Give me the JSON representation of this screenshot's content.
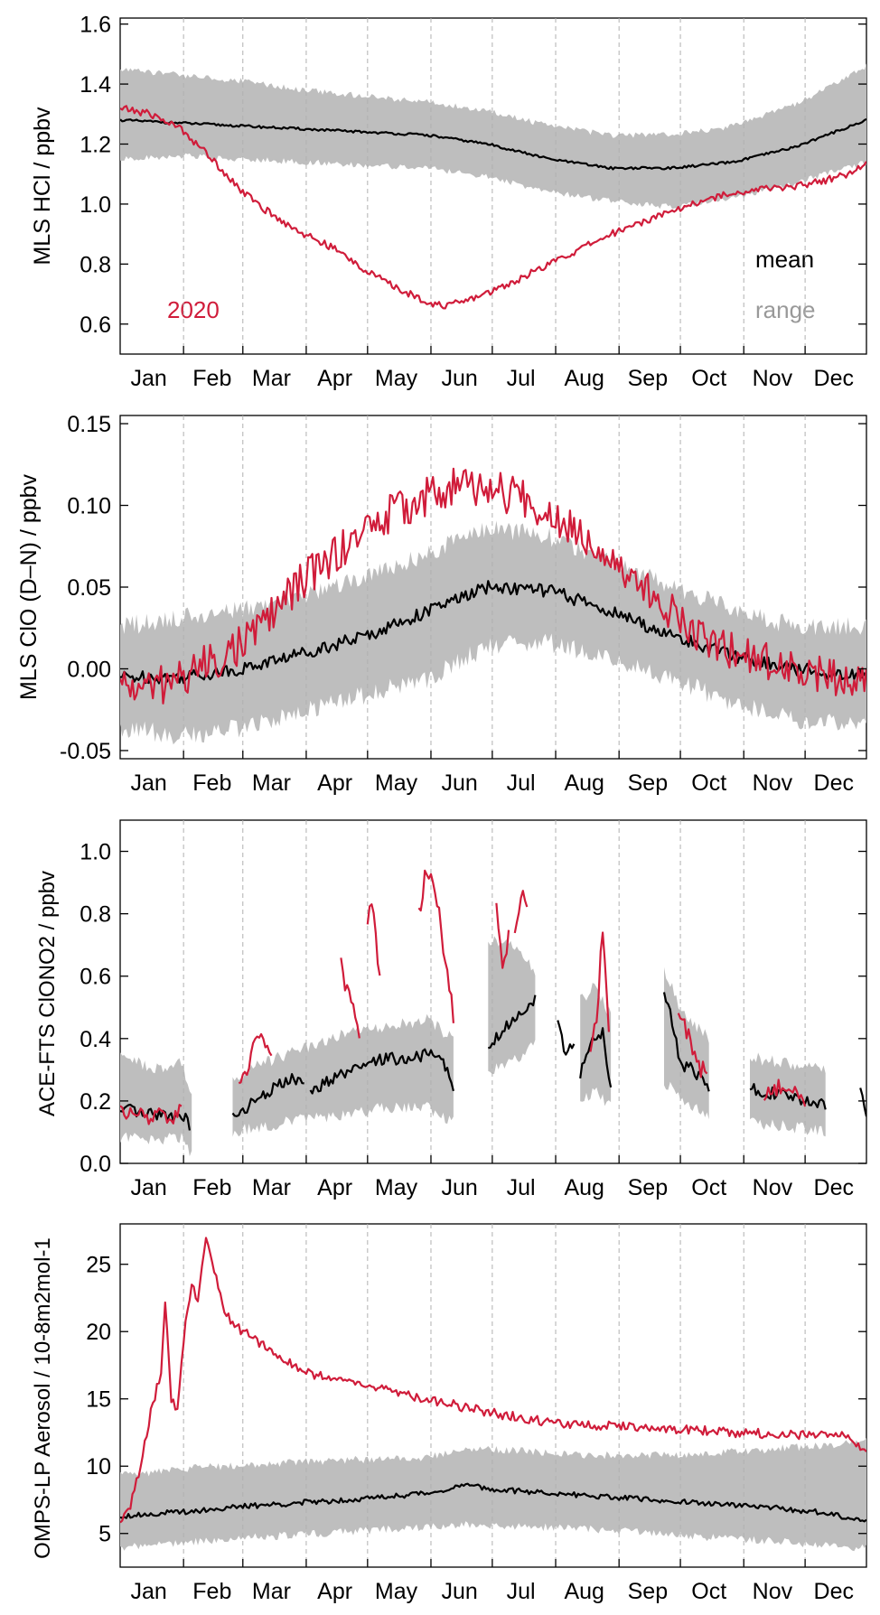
{
  "figure": {
    "months": [
      "Jan",
      "Feb",
      "Mar",
      "Apr",
      "May",
      "Jun",
      "Jul",
      "Aug",
      "Sep",
      "Oct",
      "Nov",
      "Dec"
    ]
  },
  "colors": {
    "series_2020": "#d01c3a",
    "mean": "#000000",
    "range_fill": "#bebebe",
    "range_label": "#999999",
    "grid": "#b0b0b0"
  },
  "legend": {
    "year_label": "2020",
    "mean_label": "mean",
    "range_label": "range"
  },
  "chart_data": [
    {
      "id": "hcl",
      "type": "line",
      "ylabel": "MLS HCl / ppbv",
      "ylim": [
        0.5,
        1.62
      ],
      "yticks": [
        0.6,
        0.8,
        1.0,
        1.2,
        1.4,
        1.6
      ],
      "ytick_labels": [
        "0.6",
        "0.8",
        "1.0",
        "1.2",
        "1.4",
        "1.6"
      ],
      "x_unit": "day of year",
      "xlim": [
        0,
        365
      ],
      "series": [
        {
          "name": "2020",
          "x": [
            0,
            15,
            30,
            45,
            60,
            75,
            90,
            105,
            120,
            135,
            152,
            160,
            170,
            182,
            195,
            210,
            225,
            240,
            255,
            270,
            285,
            300,
            315,
            330,
            345,
            360,
            365
          ],
          "y": [
            1.32,
            1.3,
            1.25,
            1.15,
            1.04,
            0.96,
            0.9,
            0.85,
            0.78,
            0.72,
            0.67,
            0.66,
            0.68,
            0.71,
            0.75,
            0.8,
            0.85,
            0.9,
            0.94,
            0.98,
            1.01,
            1.04,
            1.05,
            1.06,
            1.08,
            1.11,
            1.14
          ]
        },
        {
          "name": "mean",
          "x": [
            0,
            30,
            60,
            90,
            120,
            150,
            180,
            210,
            240,
            270,
            300,
            330,
            365
          ],
          "y": [
            1.28,
            1.27,
            1.26,
            1.25,
            1.24,
            1.23,
            1.2,
            1.15,
            1.12,
            1.12,
            1.14,
            1.19,
            1.28
          ]
        },
        {
          "name": "range",
          "x": [
            0,
            30,
            60,
            90,
            120,
            150,
            180,
            210,
            240,
            270,
            300,
            330,
            365
          ],
          "lower": [
            1.16,
            1.17,
            1.16,
            1.15,
            1.14,
            1.13,
            1.1,
            1.05,
            1.02,
            1.0,
            1.03,
            1.08,
            1.15
          ],
          "upper": [
            1.44,
            1.42,
            1.4,
            1.37,
            1.35,
            1.33,
            1.3,
            1.25,
            1.22,
            1.22,
            1.25,
            1.32,
            1.45
          ]
        }
      ]
    },
    {
      "id": "clo",
      "type": "line",
      "ylabel": "MLS ClO (D–N) / ppbv",
      "ylim": [
        -0.055,
        0.155
      ],
      "yticks": [
        -0.05,
        0.0,
        0.05,
        0.1,
        0.15
      ],
      "ytick_labels": [
        "-0.05",
        "0.00",
        "0.05",
        "0.10",
        "0.15"
      ],
      "x_unit": "day of year",
      "xlim": [
        0,
        365
      ],
      "series": [
        {
          "name": "2020",
          "x": [
            0,
            15,
            30,
            45,
            60,
            75,
            90,
            105,
            120,
            135,
            150,
            165,
            180,
            195,
            210,
            225,
            240,
            255,
            270,
            285,
            300,
            315,
            330,
            345,
            365
          ],
          "y": [
            -0.01,
            -0.012,
            -0.005,
            0.005,
            0.015,
            0.035,
            0.055,
            0.07,
            0.085,
            0.097,
            0.105,
            0.112,
            0.11,
            0.105,
            0.095,
            0.085,
            0.07,
            0.05,
            0.035,
            0.02,
            0.01,
            0.005,
            0.0,
            -0.005,
            -0.01
          ]
        },
        {
          "name": "mean",
          "x": [
            0,
            30,
            60,
            90,
            120,
            150,
            180,
            210,
            240,
            270,
            300,
            330,
            365
          ],
          "y": [
            -0.005,
            -0.005,
            0.0,
            0.01,
            0.02,
            0.035,
            0.05,
            0.048,
            0.035,
            0.02,
            0.008,
            0.0,
            -0.005
          ]
        },
        {
          "name": "range",
          "x": [
            0,
            30,
            60,
            90,
            120,
            150,
            180,
            210,
            240,
            270,
            300,
            330,
            365
          ],
          "lower": [
            -0.03,
            -0.035,
            -0.03,
            -0.02,
            -0.01,
            0.0,
            0.02,
            0.022,
            0.012,
            0.0,
            -0.015,
            -0.025,
            -0.03
          ],
          "upper": [
            0.02,
            0.025,
            0.03,
            0.04,
            0.05,
            0.065,
            0.08,
            0.075,
            0.06,
            0.045,
            0.03,
            0.02,
            0.02
          ]
        }
      ]
    },
    {
      "id": "clono2",
      "type": "line",
      "ylabel": "ACE-FTS ClONO2 / ppbv",
      "ylim": [
        0.0,
        1.1
      ],
      "yticks": [
        0.0,
        0.2,
        0.4,
        0.6,
        0.8,
        1.0
      ],
      "ytick_labels": [
        "0.0",
        "0.2",
        "0.4",
        "0.6",
        "0.8",
        "1.0"
      ],
      "x_unit": "day of year",
      "xlim": [
        0,
        365
      ],
      "series": [
        {
          "name": "2020",
          "segments": [
            {
              "x": [
                0,
                5,
                10,
                15,
                20,
                25,
                30
              ],
              "y": [
                0.18,
                0.15,
                0.16,
                0.14,
                0.17,
                0.15,
                0.16
              ]
            },
            {
              "x": [
                58,
                62,
                66,
                70,
                74
              ],
              "y": [
                0.25,
                0.3,
                0.38,
                0.42,
                0.33
              ]
            },
            {
              "x": [
                108,
                111,
                114,
                117
              ],
              "y": [
                0.65,
                0.55,
                0.5,
                0.38
              ]
            },
            {
              "x": [
                121,
                123,
                125,
                127
              ],
              "y": [
                0.78,
                0.83,
                0.72,
                0.6
              ]
            },
            {
              "x": [
                146,
                150,
                154,
                158,
                163
              ],
              "y": [
                0.8,
                0.95,
                0.88,
                0.7,
                0.47
              ]
            },
            {
              "x": [
                184,
                187,
                190
              ],
              "y": [
                0.85,
                0.62,
                0.72
              ]
            },
            {
              "x": [
                193,
                196,
                199
              ],
              "y": [
                0.72,
                0.87,
                0.8
              ]
            },
            {
              "x": [
                230,
                233,
                236,
                239
              ],
              "y": [
                0.35,
                0.45,
                0.75,
                0.42
              ]
            },
            {
              "x": [
                273,
                276,
                279,
                283,
                287
              ],
              "y": [
                0.5,
                0.45,
                0.38,
                0.3,
                0.3
              ]
            },
            {
              "x": [
                315,
                320,
                325,
                330,
                335
              ],
              "y": [
                0.2,
                0.25,
                0.22,
                0.24,
                0.2
              ]
            }
          ]
        },
        {
          "name": "mean",
          "segments": [
            {
              "x": [
                0,
                6,
                12,
                18,
                24,
                30,
                34
              ],
              "y": [
                0.16,
                0.17,
                0.15,
                0.16,
                0.15,
                0.16,
                0.12
              ]
            },
            {
              "x": [
                55,
                62,
                70,
                78,
                84,
                90
              ],
              "y": [
                0.15,
                0.18,
                0.22,
                0.25,
                0.27,
                0.25
              ]
            },
            {
              "x": [
                93,
                100,
                108,
                116,
                124,
                130,
                140,
                150,
                158,
                163
              ],
              "y": [
                0.22,
                0.26,
                0.28,
                0.3,
                0.32,
                0.34,
                0.33,
                0.35,
                0.33,
                0.24
              ]
            },
            {
              "x": [
                180,
                186,
                192,
                198,
                203
              ],
              "y": [
                0.38,
                0.42,
                0.46,
                0.5,
                0.52
              ]
            },
            {
              "x": [
                214,
                218,
                222
              ],
              "y": [
                0.45,
                0.35,
                0.38
              ]
            },
            {
              "x": [
                225,
                230,
                236,
                240
              ],
              "y": [
                0.28,
                0.4,
                0.42,
                0.25
              ]
            },
            {
              "x": [
                266,
                270,
                274,
                280,
                285,
                288
              ],
              "y": [
                0.55,
                0.45,
                0.32,
                0.3,
                0.27,
                0.24
              ]
            },
            {
              "x": [
                308,
                315,
                322,
                330,
                338,
                345
              ],
              "y": [
                0.24,
                0.23,
                0.22,
                0.21,
                0.2,
                0.18
              ]
            },
            {
              "x": [
                362,
                364,
                365
              ],
              "y": [
                0.25,
                0.18,
                0.16
              ]
            }
          ]
        },
        {
          "name": "range",
          "segments": [
            {
              "x": [
                0,
                10,
                20,
                30,
                35
              ],
              "lower": [
                0.1,
                0.1,
                0.1,
                0.1,
                0.05
              ],
              "upper": [
                0.32,
                0.3,
                0.28,
                0.3,
                0.2
              ]
            },
            {
              "x": [
                55,
                70,
                90,
                110,
                130,
                150,
                163
              ],
              "lower": [
                0.12,
                0.14,
                0.16,
                0.18,
                0.2,
                0.2,
                0.15
              ],
              "upper": [
                0.25,
                0.3,
                0.35,
                0.4,
                0.42,
                0.44,
                0.38
              ]
            },
            {
              "x": [
                180,
                192,
                203
              ],
              "lower": [
                0.32,
                0.35,
                0.4
              ],
              "upper": [
                0.7,
                0.68,
                0.6
              ]
            },
            {
              "x": [
                225,
                232,
                240
              ],
              "lower": [
                0.22,
                0.25,
                0.2
              ],
              "upper": [
                0.5,
                0.55,
                0.45
              ]
            },
            {
              "x": [
                266,
                276,
                288
              ],
              "lower": [
                0.28,
                0.22,
                0.18
              ],
              "upper": [
                0.6,
                0.45,
                0.38
              ]
            },
            {
              "x": [
                308,
                325,
                345
              ],
              "lower": [
                0.15,
                0.14,
                0.12
              ],
              "upper": [
                0.32,
                0.3,
                0.28
              ]
            }
          ]
        }
      ]
    },
    {
      "id": "aerosol",
      "type": "line",
      "ylabel": "OMPS-LP Aerosol / 10-8m2mol-1",
      "ylim": [
        2.5,
        28
      ],
      "yticks": [
        5,
        10,
        15,
        20,
        25
      ],
      "ytick_labels": [
        "5",
        "10",
        "15",
        "20",
        "25"
      ],
      "x_unit": "day of year",
      "xlim": [
        0,
        365
      ],
      "series": [
        {
          "name": "2020",
          "x": [
            0,
            5,
            10,
            15,
            20,
            22,
            25,
            28,
            32,
            35,
            38,
            42,
            46,
            50,
            55,
            60,
            70,
            80,
            90,
            105,
            120,
            135,
            150,
            165,
            180,
            200,
            220,
            240,
            260,
            280,
            300,
            320,
            340,
            355,
            365
          ],
          "y": [
            6,
            7,
            10,
            14,
            17,
            22.5,
            15,
            14,
            21,
            23.5,
            22,
            27,
            24.5,
            22,
            20.5,
            20,
            19,
            18,
            17,
            16.5,
            16,
            15.5,
            15,
            14.5,
            14,
            13.5,
            13,
            13,
            12.8,
            12.7,
            12.5,
            12.4,
            12.3,
            12.2,
            11
          ]
        },
        {
          "name": "mean",
          "x": [
            0,
            30,
            60,
            90,
            120,
            150,
            170,
            180,
            200,
            220,
            240,
            260,
            280,
            300,
            320,
            340,
            365
          ],
          "y": [
            6.3,
            6.6,
            7,
            7.3,
            7.6,
            8,
            8.6,
            8.3,
            8.1,
            7.9,
            7.7,
            7.5,
            7.3,
            7.1,
            6.9,
            6.6,
            6
          ]
        },
        {
          "name": "range",
          "x": [
            0,
            30,
            60,
            90,
            120,
            150,
            170,
            180,
            200,
            220,
            240,
            260,
            280,
            300,
            320,
            340,
            365
          ],
          "lower": [
            4.3,
            4.6,
            5,
            5.2,
            5.5,
            5.8,
            6,
            5.9,
            5.8,
            5.7,
            5.5,
            5.3,
            5.1,
            4.9,
            4.7,
            4.5,
            4.2
          ],
          "upper": [
            9,
            9.5,
            9.8,
            10,
            10.2,
            10.3,
            11,
            11,
            10.8,
            10.6,
            10.5,
            10.5,
            10.6,
            10.8,
            11,
            11.2,
            11.5
          ]
        }
      ]
    }
  ]
}
